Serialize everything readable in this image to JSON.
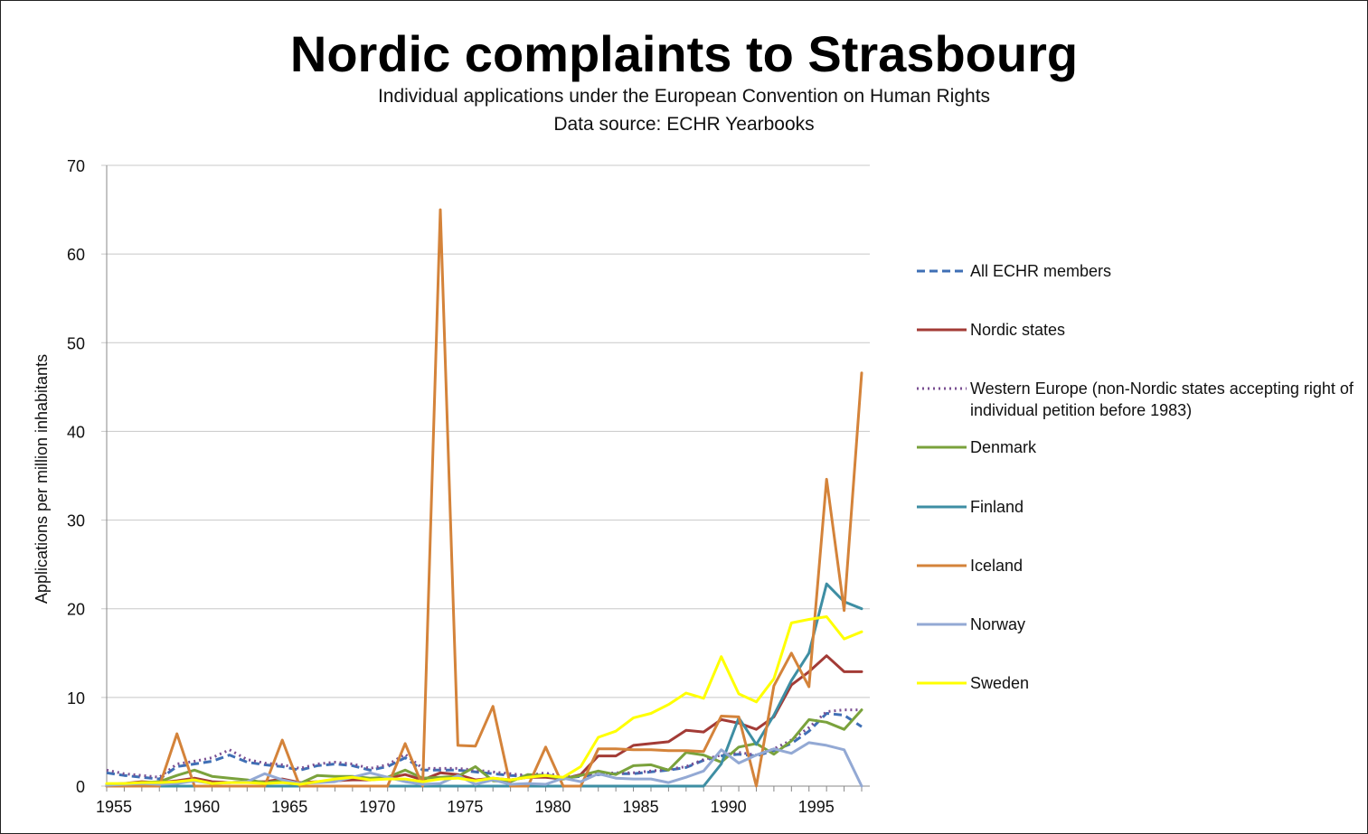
{
  "title": "Nordic complaints to Strasbourg",
  "subtitle": "Individual applications under the European Convention on Human Rights",
  "source": "Data source: ECHR Yearbooks",
  "chart_data": {
    "type": "line",
    "title": "Nordic complaints to Strasbourg",
    "ylabel": "Applications per million inhabitants",
    "xlabel": "",
    "xlim": [
      1955,
      1998
    ],
    "ylim": [
      0,
      70
    ],
    "x_ticks": [
      "1955",
      "1960",
      "1965",
      "1970",
      "1975",
      "1980",
      "1985",
      "1990",
      "1995"
    ],
    "y_ticks": [
      "0",
      "10",
      "20",
      "30",
      "40",
      "50",
      "60",
      "70"
    ],
    "grid": "horizontal",
    "legend_position": "right",
    "x": [
      1955,
      1956,
      1957,
      1958,
      1959,
      1960,
      1961,
      1962,
      1963,
      1964,
      1965,
      1966,
      1967,
      1968,
      1969,
      1970,
      1971,
      1972,
      1973,
      1974,
      1975,
      1976,
      1977,
      1978,
      1979,
      1980,
      1981,
      1982,
      1983,
      1984,
      1985,
      1986,
      1987,
      1988,
      1989,
      1990,
      1991,
      1992,
      1993,
      1994,
      1995,
      1996,
      1997,
      1998
    ],
    "series": [
      {
        "name": "All ECHR members",
        "color": "#3f6fb5",
        "dash": "dashed",
        "values": [
          1.5,
          1.2,
          1.0,
          0.8,
          2.2,
          2.5,
          2.8,
          3.5,
          2.7,
          2.4,
          2.2,
          1.8,
          2.3,
          2.5,
          2.3,
          1.8,
          2.2,
          3.2,
          1.8,
          1.8,
          1.8,
          1.6,
          1.4,
          1.2,
          1.1,
          1.3,
          0.9,
          1.1,
          1.3,
          1.4,
          1.4,
          1.6,
          1.8,
          2.1,
          2.9,
          3.4,
          3.6,
          3.4,
          4.0,
          4.8,
          6.2,
          8.2,
          8.0,
          6.7
        ]
      },
      {
        "name": "Nordic states",
        "color": "#a33b36",
        "dash": "solid",
        "values": [
          0.2,
          0.3,
          0.5,
          0.4,
          0.6,
          0.9,
          0.5,
          0.4,
          0.5,
          0.5,
          0.8,
          0.4,
          0.5,
          0.6,
          0.7,
          0.7,
          0.9,
          1.3,
          0.7,
          1.5,
          1.3,
          0.7,
          0.9,
          0.7,
          1.0,
          1.0,
          0.8,
          1.3,
          3.4,
          3.4,
          4.6,
          4.8,
          5.0,
          6.3,
          6.1,
          7.5,
          7.1,
          6.4,
          7.8,
          11.4,
          12.9,
          14.7,
          12.9,
          12.9
        ]
      },
      {
        "name": "Western Europe (non-Nordic states accepting right of individual petition before 1983)",
        "color": "#7a4f92",
        "dash": "dotted",
        "values": [
          1.8,
          1.4,
          1.2,
          1.0,
          2.5,
          2.8,
          3.2,
          4.1,
          3.0,
          2.6,
          2.4,
          2.0,
          2.5,
          2.7,
          2.5,
          2.0,
          2.4,
          3.6,
          2.0,
          2.0,
          2.0,
          1.8,
          1.6,
          1.4,
          1.2,
          1.5,
          1.0,
          1.2,
          1.4,
          1.5,
          1.5,
          1.7,
          1.9,
          2.2,
          3.0,
          3.5,
          3.8,
          3.5,
          4.2,
          5.2,
          6.6,
          8.4,
          8.6,
          8.6
        ]
      },
      {
        "name": "Denmark",
        "color": "#7aa23c",
        "dash": "solid",
        "values": [
          0.2,
          0.2,
          0.4,
          0.5,
          1.2,
          1.8,
          1.1,
          0.9,
          0.7,
          0.4,
          0.6,
          0.3,
          1.2,
          1.1,
          1.1,
          0.9,
          1.0,
          1.8,
          0.9,
          1.0,
          1.1,
          2.2,
          0.6,
          0.5,
          1.3,
          1.2,
          0.8,
          1.2,
          1.7,
          1.3,
          2.3,
          2.4,
          1.8,
          3.8,
          3.5,
          2.7,
          4.4,
          4.8,
          3.6,
          5.1,
          7.5,
          7.2,
          6.4,
          8.6
        ]
      },
      {
        "name": "Finland",
        "color": "#3e8ea3",
        "dash": "solid",
        "values": [
          0,
          0,
          0,
          0,
          0,
          0,
          0,
          0,
          0,
          0,
          0,
          0,
          0,
          0,
          0,
          0,
          0,
          0,
          0,
          0,
          0,
          0,
          0,
          0,
          0,
          0,
          0,
          0,
          0,
          0,
          0,
          0,
          0,
          0,
          0,
          2.5,
          7.7,
          4.7,
          8.0,
          11.9,
          15.0,
          22.8,
          20.8,
          20.0
        ]
      },
      {
        "name": "Iceland",
        "color": "#d4833a",
        "dash": "solid",
        "values": [
          0,
          0,
          0,
          0,
          5.9,
          0,
          0,
          0,
          0,
          0,
          5.2,
          0,
          0,
          0,
          0,
          0,
          0,
          4.8,
          0,
          65.0,
          4.6,
          4.5,
          9.0,
          0,
          0,
          4.4,
          0,
          0,
          4.2,
          4.2,
          4.1,
          4.1,
          4.0,
          4.0,
          3.9,
          7.9,
          7.8,
          0,
          11.3,
          15.0,
          11.2,
          34.6,
          19.8,
          46.6
        ]
      },
      {
        "name": "Norway",
        "color": "#93a9d4",
        "dash": "solid",
        "values": [
          0.1,
          0.2,
          0.3,
          0.2,
          0.3,
          0.6,
          0.3,
          0.4,
          0.5,
          1.4,
          0.7,
          0.3,
          0.4,
          0.5,
          1.0,
          1.5,
          1.0,
          0.5,
          0.2,
          0.3,
          1.2,
          0.2,
          0.7,
          0.2,
          0.3,
          0.2,
          0.9,
          0.5,
          1.4,
          0.9,
          0.8,
          0.8,
          0.4,
          1.0,
          1.7,
          4.1,
          2.6,
          3.5,
          4.2,
          3.7,
          4.9,
          4.6,
          4.1,
          0
        ]
      },
      {
        "name": "Sweden",
        "color": "#ffff00",
        "dash": "solid",
        "values": [
          0.3,
          0.3,
          0.4,
          0.4,
          0.5,
          0.7,
          0.3,
          0.4,
          0.4,
          0.3,
          0.4,
          0.2,
          0.5,
          0.8,
          1.0,
          0.7,
          0.8,
          0.8,
          0.5,
          0.8,
          0.9,
          0.6,
          0.9,
          0.7,
          1.0,
          1.2,
          1.0,
          2.2,
          5.5,
          6.2,
          7.7,
          8.2,
          9.2,
          10.5,
          9.9,
          14.6,
          10.4,
          9.5,
          12.1,
          18.4,
          18.8,
          19.1,
          16.6,
          17.4
        ]
      }
    ]
  }
}
